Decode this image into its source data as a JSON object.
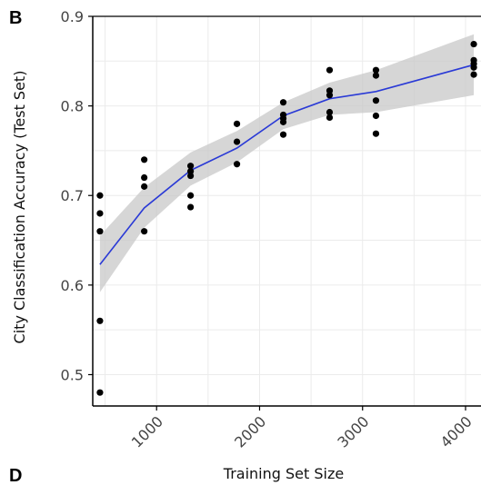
{
  "panel_labels": {
    "top": "B",
    "bottom": "D"
  },
  "colors": {
    "background": "#ffffff",
    "grid": "#ebebeb",
    "ribbon": "#c8c8c8",
    "line": "#2a3ad6",
    "points": "#000000",
    "axis": "#000000",
    "tick_text": "#444444"
  },
  "chart_data": {
    "type": "scatter",
    "xlabel": "Training Set Size",
    "ylabel": "City Classification Accuracy (Test Set)",
    "xlim": [
      380,
      4150
    ],
    "ylim": [
      0.465,
      0.9
    ],
    "x_ticks": [
      1000,
      2000,
      3000,
      4000
    ],
    "x_tick_labels": [
      "1000",
      "2000",
      "3000",
      "4000"
    ],
    "y_ticks": [
      0.5,
      0.6,
      0.7,
      0.8,
      0.9
    ],
    "y_tick_labels": [
      "0.5",
      "0.6",
      "0.7",
      "0.8",
      "0.9"
    ],
    "grid": true,
    "points": [
      {
        "x": 450,
        "y": 0.7
      },
      {
        "x": 450,
        "y": 0.68
      },
      {
        "x": 450,
        "y": 0.66
      },
      {
        "x": 450,
        "y": 0.56
      },
      {
        "x": 450,
        "y": 0.48
      },
      {
        "x": 880,
        "y": 0.74
      },
      {
        "x": 880,
        "y": 0.72
      },
      {
        "x": 880,
        "y": 0.71
      },
      {
        "x": 880,
        "y": 0.66
      },
      {
        "x": 1330,
        "y": 0.733
      },
      {
        "x": 1330,
        "y": 0.727
      },
      {
        "x": 1330,
        "y": 0.722
      },
      {
        "x": 1330,
        "y": 0.7
      },
      {
        "x": 1330,
        "y": 0.687
      },
      {
        "x": 1780,
        "y": 0.78
      },
      {
        "x": 1780,
        "y": 0.76
      },
      {
        "x": 1780,
        "y": 0.735
      },
      {
        "x": 2230,
        "y": 0.804
      },
      {
        "x": 2230,
        "y": 0.79
      },
      {
        "x": 2230,
        "y": 0.786
      },
      {
        "x": 2230,
        "y": 0.782
      },
      {
        "x": 2230,
        "y": 0.768
      },
      {
        "x": 2680,
        "y": 0.84
      },
      {
        "x": 2680,
        "y": 0.817
      },
      {
        "x": 2680,
        "y": 0.812
      },
      {
        "x": 2680,
        "y": 0.793
      },
      {
        "x": 2680,
        "y": 0.787
      },
      {
        "x": 3130,
        "y": 0.84
      },
      {
        "x": 3130,
        "y": 0.834
      },
      {
        "x": 3130,
        "y": 0.806
      },
      {
        "x": 3130,
        "y": 0.789
      },
      {
        "x": 3130,
        "y": 0.769
      },
      {
        "x": 4080,
        "y": 0.869
      },
      {
        "x": 4080,
        "y": 0.851
      },
      {
        "x": 4080,
        "y": 0.847
      },
      {
        "x": 4080,
        "y": 0.843
      },
      {
        "x": 4080,
        "y": 0.835
      }
    ],
    "trend_line": {
      "x": [
        450,
        880,
        1330,
        1780,
        2230,
        2680,
        3130,
        4080
      ],
      "y": [
        0.623,
        0.686,
        0.728,
        0.753,
        0.789,
        0.808,
        0.816,
        0.846
      ],
      "lower": [
        0.592,
        0.664,
        0.711,
        0.737,
        0.774,
        0.79,
        0.793,
        0.812
      ],
      "upper": [
        0.655,
        0.709,
        0.748,
        0.772,
        0.804,
        0.826,
        0.84,
        0.88
      ]
    }
  }
}
